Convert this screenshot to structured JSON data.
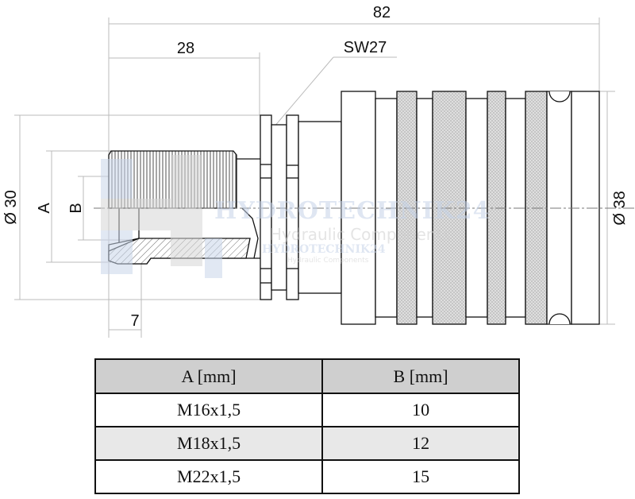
{
  "drawing": {
    "dimensions": {
      "overall_length": "82",
      "nut_length": "28",
      "wrench_size": "SW27",
      "diameter_left": "Ø 30",
      "thread_label": "A",
      "bore_label": "B",
      "diameter_right": "Ø 38",
      "tip_length": "7"
    },
    "watermark": {
      "brand": "HYDROTECHNIK24",
      "tagline": "Hydraulic Components"
    },
    "colors": {
      "line": "#111111",
      "dim_line": "#bbbbbb",
      "knurl": "#d6d6d6",
      "watermark": "#c5d3e8"
    }
  },
  "table": {
    "headers": [
      "A [mm]",
      "B [mm]"
    ],
    "rows": [
      [
        "M16x1,5",
        "10"
      ],
      [
        "M18x1,5",
        "12"
      ],
      [
        "M22x1,5",
        "15"
      ]
    ]
  }
}
